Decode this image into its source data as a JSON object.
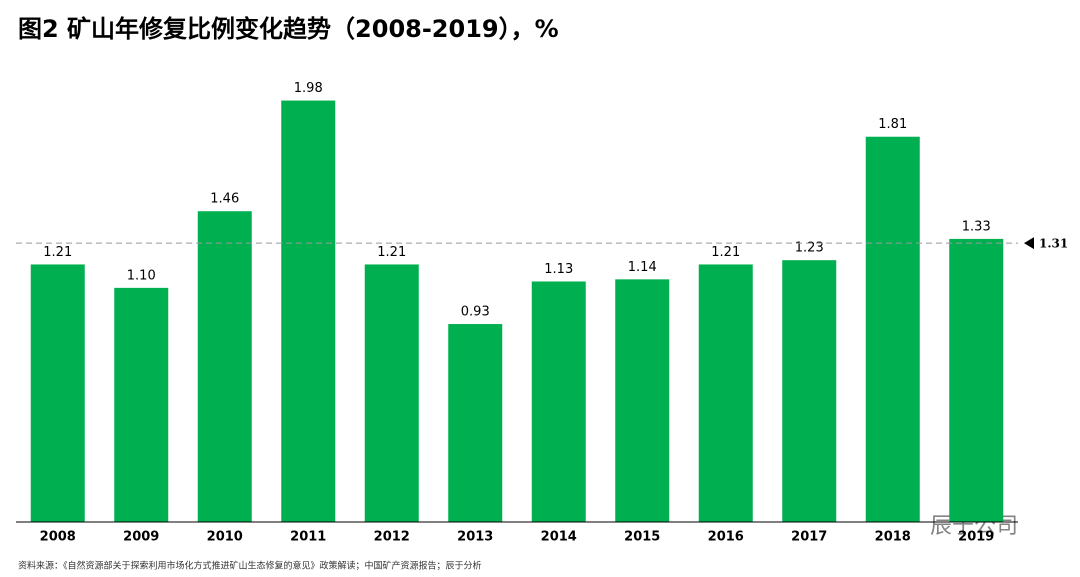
{
  "chart_data": {
    "type": "bar",
    "title": "图2 矿山年修复比例变化趋势（2008-2019），%",
    "categories": [
      "2008",
      "2009",
      "2010",
      "2011",
      "2012",
      "2013",
      "2014",
      "2015",
      "2016",
      "2017",
      "2018",
      "2019"
    ],
    "values": [
      1.21,
      1.1,
      1.46,
      1.98,
      1.21,
      0.93,
      1.13,
      1.14,
      1.21,
      1.23,
      1.81,
      1.33
    ],
    "value_labels": [
      "1.21",
      "1.10",
      "1.46",
      "1.98",
      "1.21",
      "0.93",
      "1.13",
      "1.14",
      "1.21",
      "1.23",
      "1.81",
      "1.33"
    ],
    "color": "#00b050",
    "ylim": [
      0,
      2.1
    ],
    "average": 1.31,
    "source": "资料来源：《自然资源部关于探索利用市场化方式推进矿山生态修复的意见》政策解读；中国矿产资源报告；辰于分析",
    "watermark": "辰于公司"
  }
}
